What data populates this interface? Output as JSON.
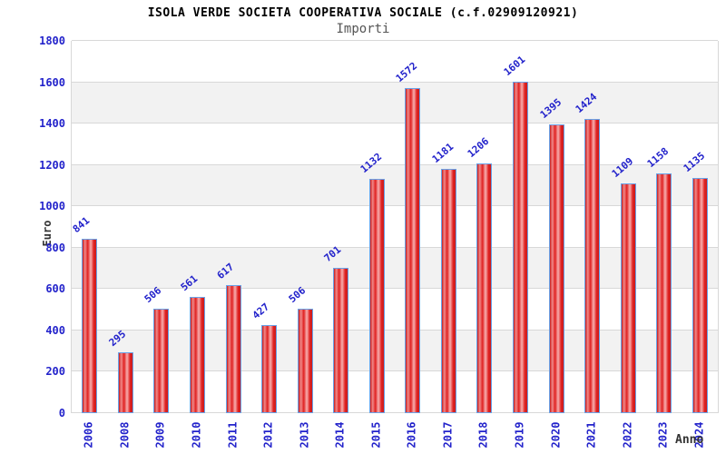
{
  "header": {
    "title": "ISOLA VERDE SOCIETA COOPERATIVA SOCIALE (c.f.02909120921)",
    "subtitle": "Importi"
  },
  "chart_data": {
    "type": "bar",
    "title": "ISOLA VERDE SOCIETA COOPERATIVA SOCIALE (c.f.02909120921)",
    "subtitle": "Importi",
    "xlabel": "Anno",
    "ylabel": "Euro",
    "categories": [
      "2006",
      "2008",
      "2009",
      "2010",
      "2011",
      "2012",
      "2013",
      "2014",
      "2015",
      "2016",
      "2017",
      "2018",
      "2019",
      "2020",
      "2021",
      "2022",
      "2023",
      "2024"
    ],
    "values": [
      841,
      295,
      506,
      561,
      617,
      427,
      506,
      701,
      1132,
      1572,
      1181,
      1206,
      1601,
      1395,
      1424,
      1109,
      1158,
      1135
    ],
    "ylim": [
      0,
      1800
    ],
    "ytick_step": 200,
    "grid": true,
    "legend_position": "none",
    "value_labels_shown": true,
    "colors": {
      "bar_fill": "#e02222",
      "bar_fill_highlight": "#f8b0b0",
      "bar_border": "#68a2e8",
      "tick_label": "#2323cb",
      "grid_line": "#d8d8d8",
      "band": "#f2f2f2",
      "axis_title": "#333333",
      "subtitle_text": "#555555",
      "title_text": "#000000"
    }
  }
}
